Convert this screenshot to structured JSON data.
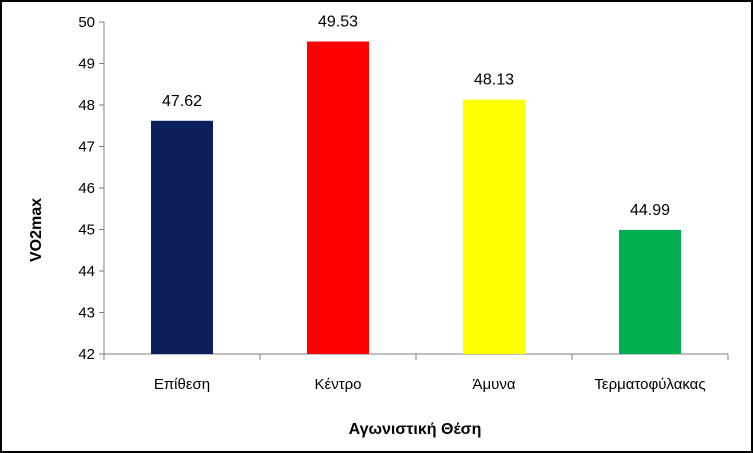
{
  "chart_data": {
    "type": "bar",
    "categories": [
      "Επίθεση",
      "Κέντρο",
      "Άμυνα",
      "Τερματοφύλακας"
    ],
    "values": [
      47.62,
      49.53,
      48.13,
      44.99
    ],
    "value_labels": [
      "47.62",
      "49.53",
      "48.13",
      "44.99"
    ],
    "colors": [
      "#0a1f5c",
      "#ff0000",
      "#ffff00",
      "#00b050"
    ],
    "title": "",
    "xlabel": "Αγωνιστική Θέση",
    "ylabel": "VO2max",
    "ylim": [
      42,
      50
    ],
    "yticks": [
      "42",
      "43",
      "44",
      "45",
      "46",
      "47",
      "48",
      "49",
      "50"
    ],
    "grid": false,
    "legend": "none"
  }
}
